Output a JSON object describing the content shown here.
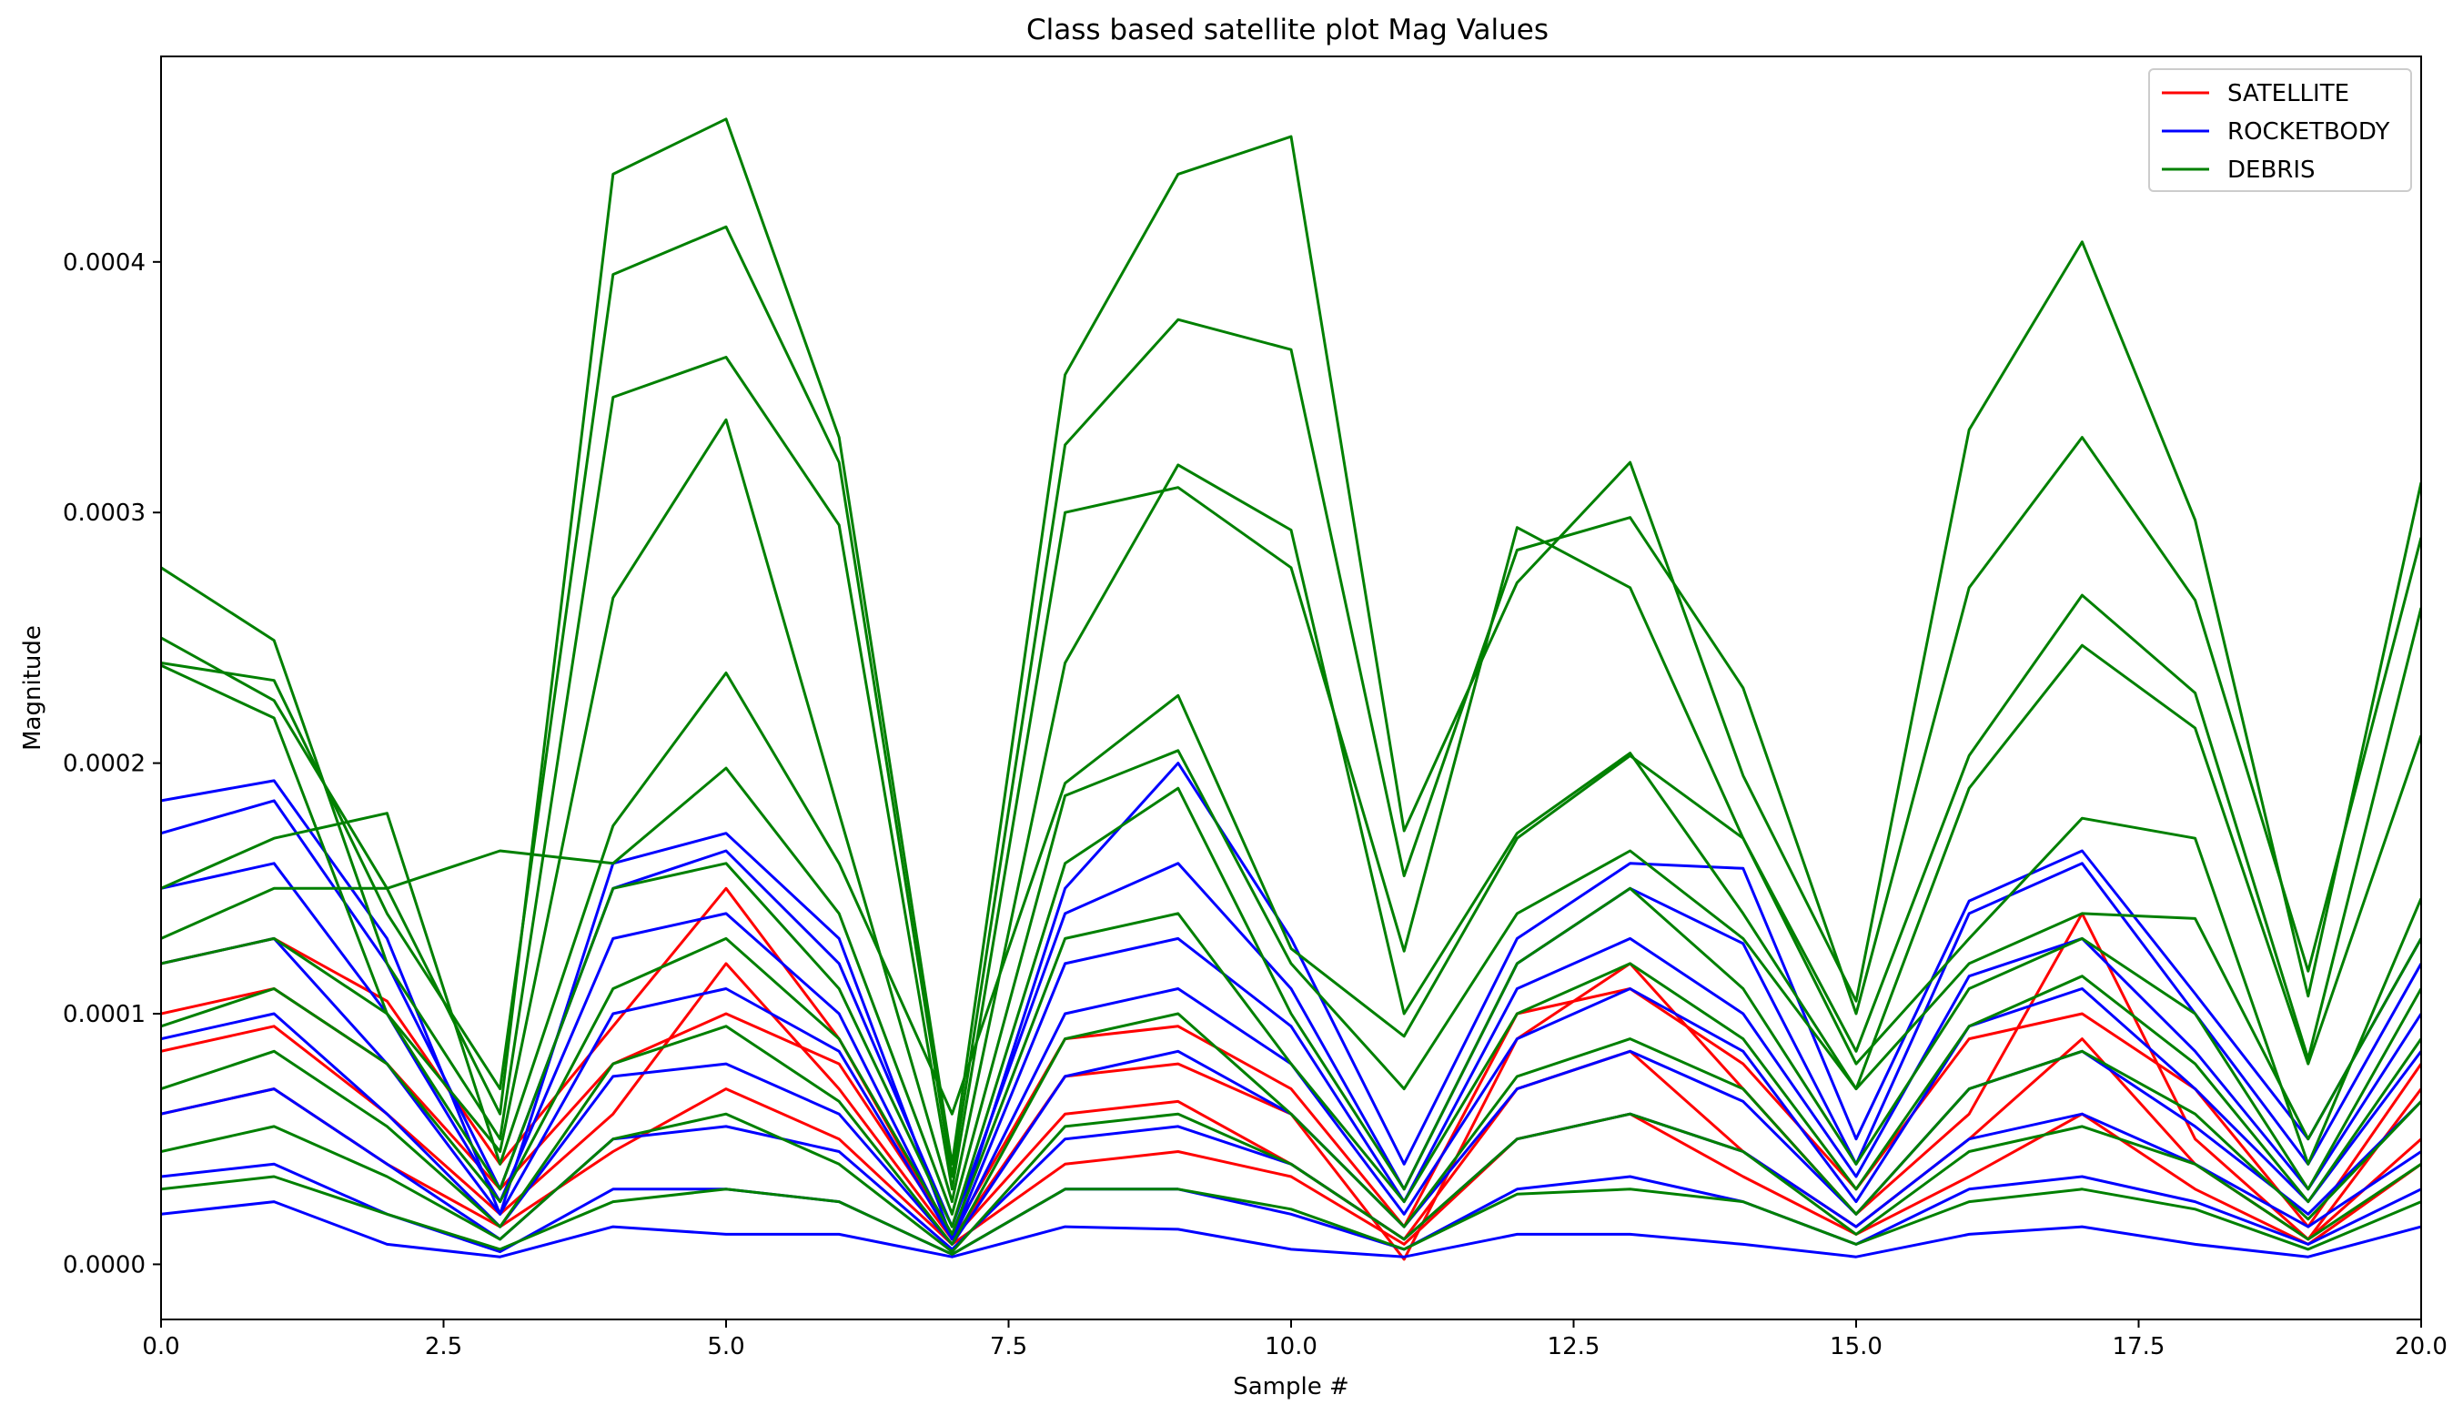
{
  "chart_data": {
    "type": "line",
    "title": "Class based satellite plot Mag Values",
    "xlabel": "Sample #",
    "ylabel": "Magnitude",
    "xlim": [
      0,
      20
    ],
    "ylim": [
      -2.2e-05,
      0.000482
    ],
    "x_ticks": [
      0,
      2.5,
      5,
      7.5,
      10,
      12.5,
      15,
      17.5,
      20
    ],
    "x_tick_labels": [
      "0.0",
      "2.5",
      "5.0",
      "7.5",
      "10.0",
      "12.5",
      "15.0",
      "17.5",
      "20.0"
    ],
    "y_ticks": [
      0,
      0.0001,
      0.0002,
      0.0003,
      0.0004
    ],
    "y_tick_labels": [
      "0.0000",
      "0.0001",
      "0.0002",
      "0.0003",
      "0.0004"
    ],
    "grid": false,
    "legend_position": "top-right",
    "x": [
      0,
      1,
      2,
      3,
      4,
      5,
      6,
      7,
      8,
      9,
      10,
      11,
      12,
      13,
      14,
      15,
      16,
      17,
      18,
      19,
      20
    ],
    "classes": [
      {
        "name": "SATELLITE",
        "color": "#ff0000"
      },
      {
        "name": "ROCKETBODY",
        "color": "#0000ff"
      },
      {
        "name": "DEBRIS",
        "color": "#008000"
      }
    ],
    "series": [
      {
        "class": "SATELLITE",
        "values": [
          0.00012,
          0.00013,
          0.000105,
          4e-05,
          9.5e-05,
          0.00015,
          9e-05,
          1e-05,
          7.5e-05,
          8e-05,
          6e-05,
          2e-06,
          9e-05,
          0.00012,
          7e-05,
          2e-05,
          6e-05,
          0.00014,
          5e-05,
          1e-05,
          7e-05
        ]
      },
      {
        "class": "SATELLITE",
        "values": [
          8.5e-05,
          9.5e-05,
          6e-05,
          2e-05,
          6e-05,
          0.00012,
          7e-05,
          1e-05,
          6e-05,
          6.5e-05,
          4e-05,
          1e-05,
          7e-05,
          8.5e-05,
          4.5e-05,
          1.5e-05,
          5e-05,
          9e-05,
          4e-05,
          1e-05,
          5e-05
        ]
      },
      {
        "class": "SATELLITE",
        "values": [
          6e-05,
          7e-05,
          4e-05,
          1.5e-05,
          4.5e-05,
          7e-05,
          5e-05,
          8e-06,
          4e-05,
          4.5e-05,
          3.5e-05,
          8e-06,
          5e-05,
          6e-05,
          3.5e-05,
          1.2e-05,
          3.5e-05,
          6e-05,
          3e-05,
          8e-06,
          4e-05
        ]
      },
      {
        "class": "SATELLITE",
        "values": [
          0.0001,
          0.00011,
          8e-05,
          3e-05,
          8e-05,
          0.0001,
          8e-05,
          1.2e-05,
          9e-05,
          9.5e-05,
          7e-05,
          1.5e-05,
          0.0001,
          0.00011,
          8e-05,
          3e-05,
          9e-05,
          0.0001,
          7e-05,
          1.5e-05,
          8e-05
        ]
      },
      {
        "class": "ROCKETBODY",
        "values": [
          0.000185,
          0.000193,
          0.00013,
          2e-05,
          0.00016,
          0.000172,
          0.00013,
          1e-05,
          0.00015,
          0.0002,
          0.00013,
          4e-05,
          0.00013,
          0.00016,
          0.000158,
          5e-05,
          0.000145,
          0.000165,
          0.000108,
          5e-05,
          0.00013
        ]
      },
      {
        "class": "ROCKETBODY",
        "values": [
          0.000172,
          0.000185,
          0.00012,
          3e-05,
          0.00015,
          0.000165,
          0.00012,
          1.5e-05,
          0.00014,
          0.00016,
          0.00011,
          3e-05,
          0.00012,
          0.00015,
          0.000128,
          4e-05,
          0.00014,
          0.00016,
          0.0001,
          4e-05,
          0.00012
        ]
      },
      {
        "class": "ROCKETBODY",
        "values": [
          0.00015,
          0.00016,
          0.0001,
          2.5e-05,
          0.00013,
          0.00014,
          0.0001,
          1e-05,
          0.00012,
          0.00013,
          9.5e-05,
          2.5e-05,
          0.00011,
          0.00013,
          0.0001,
          3.5e-05,
          0.000115,
          0.00013,
          8.5e-05,
          3e-05,
          0.0001
        ]
      },
      {
        "class": "ROCKETBODY",
        "values": [
          0.00012,
          0.00013,
          8e-05,
          2e-05,
          0.0001,
          0.00011,
          8.5e-05,
          1e-05,
          0.0001,
          0.00011,
          8e-05,
          2e-05,
          9e-05,
          0.00011,
          8.5e-05,
          2.5e-05,
          9.5e-05,
          0.00011,
          7e-05,
          2.5e-05,
          8.5e-05
        ]
      },
      {
        "class": "ROCKETBODY",
        "values": [
          9e-05,
          0.0001,
          6e-05,
          1.5e-05,
          7.5e-05,
          8e-05,
          6e-05,
          8e-06,
          7.5e-05,
          8.5e-05,
          6e-05,
          1.5e-05,
          7e-05,
          8.5e-05,
          6.5e-05,
          2e-05,
          7e-05,
          8.5e-05,
          5.5e-05,
          2e-05,
          6.5e-05
        ]
      },
      {
        "class": "ROCKETBODY",
        "values": [
          6e-05,
          7e-05,
          4e-05,
          1e-05,
          5e-05,
          5.5e-05,
          4.5e-05,
          6e-06,
          5e-05,
          5.5e-05,
          4e-05,
          1e-05,
          5e-05,
          6e-05,
          4.5e-05,
          1.5e-05,
          5e-05,
          6e-05,
          4e-05,
          1.5e-05,
          4.5e-05
        ]
      },
      {
        "class": "ROCKETBODY",
        "values": [
          3.5e-05,
          4e-05,
          2e-05,
          5e-06,
          3e-05,
          3e-05,
          2.5e-05,
          4e-06,
          3e-05,
          3e-05,
          2e-05,
          6e-06,
          3e-05,
          3.5e-05,
          2.5e-05,
          8e-06,
          3e-05,
          3.5e-05,
          2.5e-05,
          8e-06,
          3e-05
        ]
      },
      {
        "class": "ROCKETBODY",
        "values": [
          2e-05,
          2.5e-05,
          8e-06,
          3e-06,
          1.5e-05,
          1.2e-05,
          1.2e-05,
          3e-06,
          1.5e-05,
          1.4e-05,
          6e-06,
          3e-06,
          1.2e-05,
          1.2e-05,
          8e-06,
          3e-06,
          1.2e-05,
          1.5e-05,
          8e-06,
          3e-06,
          1.5e-05
        ]
      },
      {
        "class": "DEBRIS",
        "values": [
          0.00024,
          0.000233,
          0.00014,
          7e-05,
          0.000395,
          0.000414,
          0.00032,
          3.5e-05,
          0.000327,
          0.000377,
          0.000365,
          0.000155,
          0.000285,
          0.000298,
          0.00023,
          0.0001,
          0.00027,
          0.00033,
          0.000265,
          0.000117,
          0.00029
        ]
      },
      {
        "class": "DEBRIS",
        "values": [
          0.00025,
          0.000225,
          0.00015,
          6e-05,
          0.000435,
          0.000457,
          0.00033,
          4e-05,
          0.000355,
          0.000435,
          0.00045,
          0.000173,
          0.000272,
          0.00032,
          0.000195,
          0.000105,
          0.000333,
          0.000408,
          0.000297,
          0.000107,
          0.000312
        ]
      },
      {
        "class": "DEBRIS",
        "values": [
          0.000278,
          0.000249,
          0.00012,
          5e-05,
          0.000346,
          0.000362,
          0.000295,
          3e-05,
          0.0003,
          0.00031,
          0.000278,
          0.000125,
          0.000294,
          0.00027,
          0.00017,
          8.5e-05,
          0.000203,
          0.000267,
          0.000228,
          8.2e-05,
          0.000262
        ]
      },
      {
        "class": "DEBRIS",
        "values": [
          0.000239,
          0.000218,
          0.0001,
          4.5e-05,
          0.000266,
          0.000337,
          0.00018,
          2.5e-05,
          0.00024,
          0.000319,
          0.000293,
          0.0001,
          0.000172,
          0.000204,
          0.00014,
          7e-05,
          0.00019,
          0.000247,
          0.000214,
          8e-05,
          0.000211
        ]
      },
      {
        "class": "DEBRIS",
        "values": [
          0.00015,
          0.00017,
          0.00018,
          4e-05,
          0.000175,
          0.000236,
          0.00016,
          6e-05,
          0.000192,
          0.000227,
          0.000126,
          9.1e-05,
          0.00017,
          0.000203,
          0.00017,
          8e-05,
          0.00013,
          0.000178,
          0.00017,
          4e-05,
          0.000146
        ]
      },
      {
        "class": "DEBRIS",
        "values": [
          0.00013,
          0.00015,
          0.00015,
          0.000165,
          0.00016,
          0.000198,
          0.00014,
          2e-05,
          0.000187,
          0.000205,
          0.00012,
          7e-05,
          0.00014,
          0.000165,
          0.00013,
          7e-05,
          0.00012,
          0.00014,
          0.000138,
          5e-05,
          0.00013
        ]
      },
      {
        "class": "DEBRIS",
        "values": [
          0.00012,
          0.00013,
          0.0001,
          3e-05,
          0.00015,
          0.00016,
          0.00011,
          1.5e-05,
          0.00016,
          0.00019,
          0.0001,
          3e-05,
          0.00012,
          0.00015,
          0.00011,
          4e-05,
          0.00011,
          0.00013,
          0.0001,
          3e-05,
          0.00011
        ]
      },
      {
        "class": "DEBRIS",
        "values": [
          9.5e-05,
          0.00011,
          8e-05,
          2.5e-05,
          0.00011,
          0.00013,
          9e-05,
          1.2e-05,
          0.00013,
          0.00014,
          8e-05,
          2.5e-05,
          0.0001,
          0.00012,
          9e-05,
          3e-05,
          9.5e-05,
          0.000115,
          8e-05,
          2.5e-05,
          9e-05
        ]
      },
      {
        "class": "DEBRIS",
        "values": [
          7e-05,
          8.5e-05,
          5.5e-05,
          1.5e-05,
          8e-05,
          9.5e-05,
          6.5e-05,
          8e-06,
          9e-05,
          0.0001,
          6e-05,
          1.5e-05,
          7.5e-05,
          9e-05,
          7e-05,
          2e-05,
          7e-05,
          8.5e-05,
          6e-05,
          1.8e-05,
          6.5e-05
        ]
      },
      {
        "class": "DEBRIS",
        "values": [
          4.5e-05,
          5.5e-05,
          3.5e-05,
          1e-05,
          5e-05,
          6e-05,
          4e-05,
          5e-06,
          5.5e-05,
          6e-05,
          4e-05,
          1e-05,
          5e-05,
          6e-05,
          4.5e-05,
          1.2e-05,
          4.5e-05,
          5.5e-05,
          4e-05,
          1e-05,
          4e-05
        ]
      },
      {
        "class": "DEBRIS",
        "values": [
          3e-05,
          3.5e-05,
          2e-05,
          6e-06,
          2.5e-05,
          3e-05,
          2.5e-05,
          4e-06,
          3e-05,
          3e-05,
          2.2e-05,
          6e-06,
          2.8e-05,
          3e-05,
          2.5e-05,
          8e-06,
          2.5e-05,
          3e-05,
          2.2e-05,
          6e-06,
          2.5e-05
        ]
      }
    ]
  }
}
